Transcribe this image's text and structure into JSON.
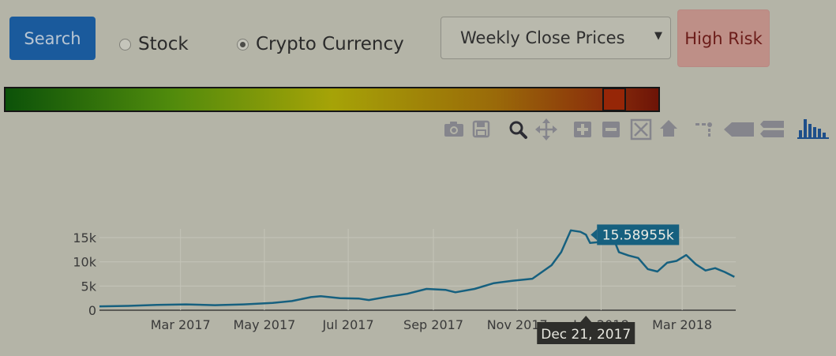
{
  "search_button": {
    "label": "Search"
  },
  "asset_type": {
    "options": [
      {
        "label": "Stock",
        "checked": false
      },
      {
        "label": "Crypto Currency",
        "checked": true
      }
    ]
  },
  "price_select": {
    "value": "Weekly Close Prices"
  },
  "risk_badge": {
    "label": "High Risk",
    "color": "#be8f87"
  },
  "risk_meter": {
    "level": 0.93
  },
  "modebar_icons": [
    "camera-icon",
    "save-icon",
    "zoom-icon",
    "pan-icon",
    "zoom-in-icon",
    "zoom-out-icon",
    "autoscale-icon",
    "reset-axes-icon",
    "spike-lines-icon",
    "hover-closest-icon",
    "hover-compare-icon",
    "plotly-logo-icon"
  ],
  "chart_data": {
    "type": "line",
    "x_tick_labels": [
      "Mar 2017",
      "May 2017",
      "Jul 2017",
      "Sep 2017",
      "Nov 2017",
      "Jan 2018",
      "Mar 2018"
    ],
    "y_tick_labels": [
      "0",
      "5k",
      "10k",
      "15k"
    ],
    "ylim": [
      0,
      16800
    ],
    "xlim": [
      "2017-01-01",
      "2018-04-09"
    ],
    "grid": true,
    "line_color": "#16607f",
    "series": [
      {
        "x": [
          "2017-01-01",
          "2017-01-22",
          "2017-02-12",
          "2017-03-05",
          "2017-03-26",
          "2017-04-16",
          "2017-05-07",
          "2017-05-21",
          "2017-06-04",
          "2017-06-11",
          "2017-06-25",
          "2017-07-09",
          "2017-07-16",
          "2017-07-30",
          "2017-08-13",
          "2017-08-27",
          "2017-09-10",
          "2017-09-17",
          "2017-10-01",
          "2017-10-15",
          "2017-10-29",
          "2017-11-12",
          "2017-11-26",
          "2017-12-03",
          "2017-12-10",
          "2017-12-17",
          "2017-12-21",
          "2017-12-24",
          "2017-12-31",
          "2018-01-07",
          "2018-01-14",
          "2018-01-21",
          "2018-01-28",
          "2018-02-04",
          "2018-02-11",
          "2018-02-18",
          "2018-02-25",
          "2018-03-04",
          "2018-03-11",
          "2018-03-18",
          "2018-03-25",
          "2018-04-01",
          "2018-04-08"
        ],
        "y": [
          800,
          900,
          1100,
          1200,
          1050,
          1200,
          1500,
          1900,
          2700,
          2900,
          2500,
          2400,
          2100,
          2800,
          3400,
          4400,
          4200,
          3700,
          4400,
          5600,
          6100,
          6500,
          9300,
          12000,
          16500,
          16200,
          15590,
          13900,
          14100,
          17000,
          12000,
          11300,
          10800,
          8500,
          8000,
          9800,
          10200,
          11400,
          9500,
          8200,
          8700,
          7900,
          6900
        ]
      }
    ],
    "hover_tooltip": {
      "x": "Dec 21, 2017",
      "y": "15.58955k"
    }
  }
}
